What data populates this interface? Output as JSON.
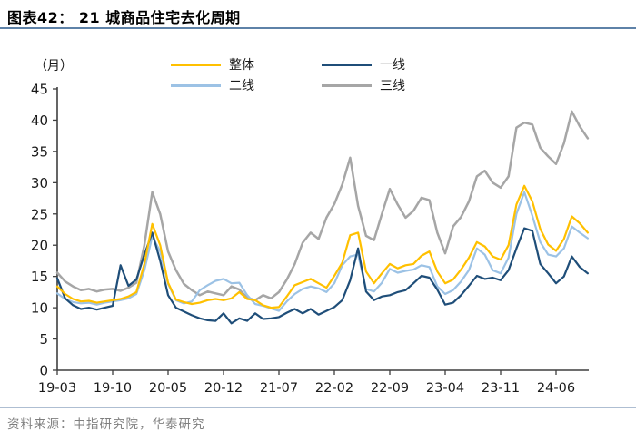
{
  "header": {
    "title": "图表42： 21 城商品住宅去化周期"
  },
  "footer": {
    "source": "资料来源：中指研究院，华泰研究"
  },
  "colors": {
    "accent_rule_top": "#5E82A8",
    "accent_rule_bottom": "#AEBED2",
    "axis": "#3f3f3f",
    "tick_text": "#1a1a1a"
  },
  "chart_data": {
    "type": "line",
    "title": "21城商品住宅去化周期",
    "unit_label": "（月）",
    "xlabel": "",
    "ylabel": "月",
    "ylim": [
      0,
      45
    ],
    "ytick_step": 5,
    "grid": false,
    "legend_position": "top-center",
    "x_start": "2019-03",
    "x_end": "2024-10",
    "x_frequency": "monthly",
    "xtick_labels": [
      "19-03",
      "19-10",
      "20-05",
      "20-12",
      "21-07",
      "22-02",
      "22-09",
      "23-04",
      "23-11",
      "24-06"
    ],
    "xtick_month_indices": [
      0,
      7,
      14,
      21,
      28,
      35,
      42,
      49,
      56,
      63
    ],
    "series": [
      {
        "name": "整体",
        "color": "#FFC000",
        "values": [
          13.4,
          12.2,
          11.4,
          11.0,
          11.1,
          10.8,
          11.0,
          11.2,
          11.4,
          11.8,
          12.5,
          17.0,
          23.4,
          20.0,
          14.0,
          11.3,
          10.9,
          10.6,
          10.8,
          11.2,
          11.4,
          11.2,
          11.5,
          12.5,
          11.4,
          11.2,
          10.4,
          10.0,
          10.1,
          11.8,
          13.6,
          14.1,
          14.6,
          13.9,
          13.2,
          15.1,
          17.2,
          21.6,
          22.0,
          15.8,
          13.9,
          15.5,
          17.0,
          16.3,
          16.8,
          17.0,
          18.3,
          19.0,
          15.8,
          13.9,
          14.5,
          16.1,
          18.0,
          20.5,
          19.8,
          18.2,
          17.7,
          20.0,
          26.5,
          29.5,
          27.0,
          22.6,
          20.1,
          19.1,
          21.0,
          24.6,
          23.5,
          22.0
        ]
      },
      {
        "name": "一线",
        "color": "#1F4E79",
        "values": [
          14.7,
          11.5,
          10.4,
          9.8,
          10.0,
          9.7,
          10.0,
          10.3,
          16.8,
          13.5,
          14.5,
          18.5,
          22.0,
          17.5,
          12.0,
          10.0,
          9.4,
          8.8,
          8.3,
          8.0,
          7.9,
          9.1,
          7.5,
          8.3,
          7.9,
          9.1,
          8.2,
          8.3,
          8.5,
          9.2,
          9.8,
          9.1,
          9.8,
          8.9,
          9.5,
          10.1,
          11.2,
          14.4,
          19.5,
          12.6,
          11.2,
          11.8,
          12.0,
          12.5,
          12.8,
          13.9,
          15.1,
          14.8,
          12.9,
          10.5,
          10.8,
          12.0,
          13.5,
          15.1,
          14.6,
          14.8,
          14.4,
          16.0,
          19.5,
          22.7,
          22.3,
          17.0,
          15.5,
          13.9,
          15.0,
          18.2,
          16.5,
          15.5
        ]
      },
      {
        "name": "二线",
        "color": "#9CC2E5",
        "values": [
          12.3,
          11.4,
          10.9,
          10.7,
          10.8,
          10.5,
          10.8,
          11.0,
          11.2,
          11.5,
          12.2,
          16.0,
          21.4,
          19.0,
          13.8,
          11.2,
          10.7,
          11.0,
          12.8,
          13.6,
          14.3,
          14.6,
          13.9,
          14.0,
          12.0,
          10.6,
          10.3,
          9.9,
          9.5,
          11.0,
          12.2,
          13.0,
          13.4,
          13.1,
          12.5,
          13.9,
          16.8,
          18.2,
          18.5,
          13.0,
          12.6,
          14.0,
          16.2,
          15.6,
          15.9,
          16.1,
          16.8,
          16.5,
          13.4,
          12.2,
          12.8,
          14.2,
          16.0,
          19.5,
          18.5,
          16.0,
          15.5,
          18.0,
          25.0,
          28.5,
          24.7,
          20.5,
          18.5,
          18.2,
          19.5,
          23.0,
          22.0,
          21.1
        ]
      },
      {
        "name": "三线",
        "color": "#A6A6A6",
        "values": [
          15.6,
          14.2,
          13.4,
          12.8,
          13.0,
          12.6,
          12.9,
          13.0,
          12.7,
          13.2,
          14.0,
          20.0,
          28.5,
          25.0,
          19.0,
          16.0,
          13.8,
          12.8,
          12.0,
          12.6,
          12.3,
          12.0,
          13.4,
          12.9,
          11.6,
          11.2,
          12.0,
          11.5,
          12.5,
          14.5,
          17.0,
          20.4,
          22.0,
          21.0,
          24.4,
          26.6,
          29.7,
          34.0,
          26.3,
          21.5,
          20.8,
          25.0,
          29.0,
          26.5,
          24.4,
          25.5,
          27.6,
          27.2,
          22.0,
          18.7,
          23.0,
          24.5,
          27.0,
          31.0,
          31.9,
          30.0,
          29.2,
          31.0,
          38.8,
          39.6,
          39.3,
          35.6,
          34.2,
          33.0,
          36.3,
          41.4,
          39.0,
          37.1
        ]
      }
    ]
  }
}
